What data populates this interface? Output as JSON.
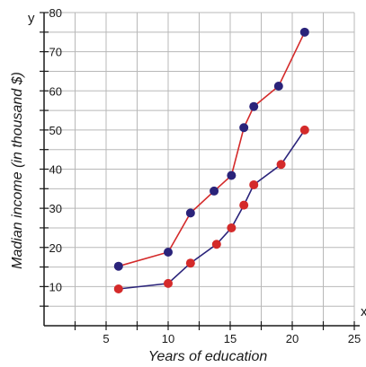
{
  "chart_data": {
    "type": "line",
    "xlabel": "Years of education",
    "ylabel": "Madian income (in thousand $)",
    "x_axis_letter": "x",
    "y_axis_letter": "y",
    "xlim": [
      0,
      25
    ],
    "ylim": [
      0,
      80
    ],
    "x_ticks": [
      5,
      10,
      15,
      20,
      25
    ],
    "y_ticks": [
      10,
      20,
      30,
      40,
      50,
      60,
      70,
      80
    ],
    "grid": true,
    "series": [
      {
        "color": "#d42a2a",
        "line_color": "#d42a2a",
        "marker_color": "#2a237a",
        "x": [
          6,
          10,
          11.8,
          13.7,
          15.1,
          16.1,
          16.9,
          18.9,
          21
        ],
        "y": [
          15.2,
          18.8,
          28.8,
          34.4,
          38.4,
          50.6,
          56,
          61.2,
          75
        ]
      },
      {
        "color": "#2a237a",
        "line_color": "#2a237a",
        "marker_color": "#d42a2a",
        "x": [
          6,
          10,
          11.8,
          13.9,
          15.1,
          16.1,
          16.9,
          19.1,
          21
        ],
        "y": [
          9.4,
          10.8,
          16,
          20.8,
          25,
          30.8,
          36,
          41.2,
          50
        ]
      }
    ]
  }
}
